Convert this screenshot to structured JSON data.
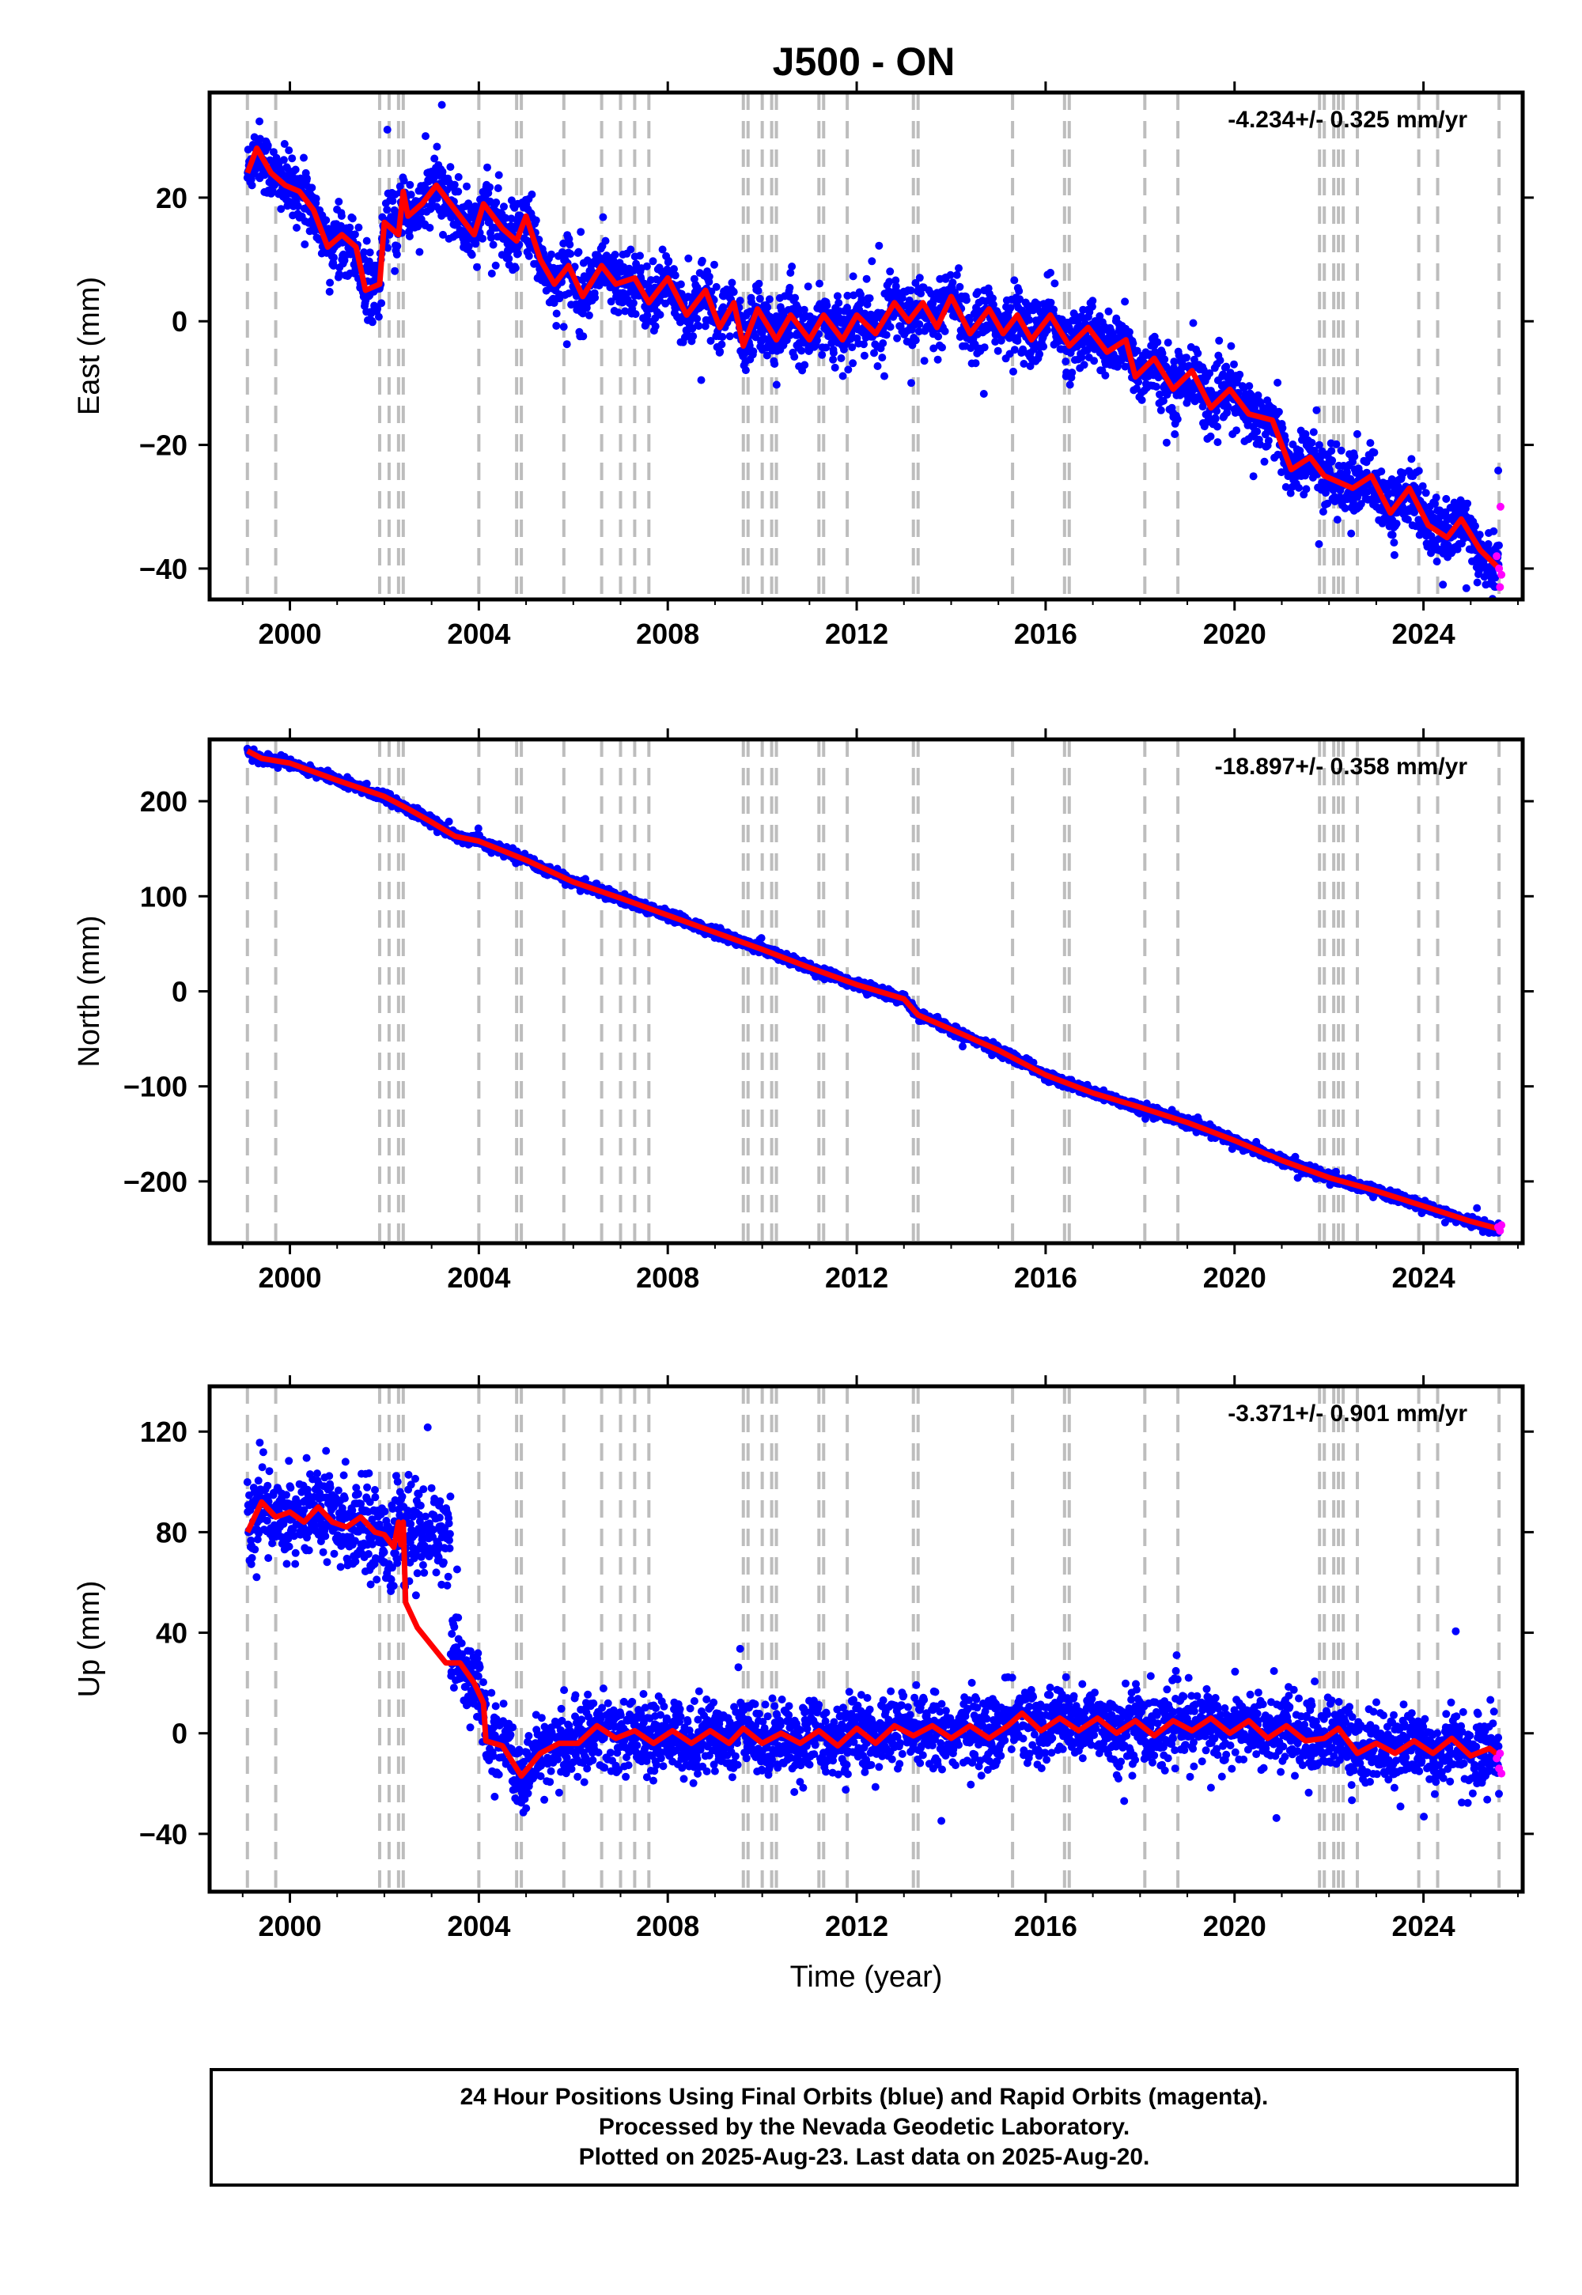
{
  "title": "J500 - ON",
  "footer": {
    "line1": "24 Hour Positions Using Final Orbits (blue) and Rapid Orbits (magenta).",
    "line2": "Processed by the Nevada Geodetic Laboratory.",
    "line3": "Plotted on 2025-Aug-23. Last data on 2025-Aug-20."
  },
  "colors": {
    "final": "#0000ff",
    "rapid": "#ff00ff",
    "model": "#ff0000",
    "events": "#bdbdbd"
  },
  "chart_data": [
    {
      "type": "scatter",
      "ylabel": "East (mm)",
      "xlabel": "",
      "rate": "-4.234+/- 0.325 mm/yr",
      "xlim": [
        1998.3,
        2026.1
      ],
      "ylim": [
        -45,
        37
      ],
      "xticks": [
        2000,
        2004,
        2008,
        2012,
        2016,
        2020,
        2024
      ],
      "yticks": [
        20,
        0,
        -20,
        -40
      ],
      "model": [
        [
          1999.1,
          24
        ],
        [
          1999.3,
          28
        ],
        [
          1999.6,
          24
        ],
        [
          1999.9,
          22
        ],
        [
          2000.2,
          21
        ],
        [
          2000.5,
          18
        ],
        [
          2000.8,
          12
        ],
        [
          2001.1,
          14
        ],
        [
          2001.4,
          12
        ],
        [
          2001.6,
          5
        ],
        [
          2001.9,
          6
        ],
        [
          2002.0,
          16
        ],
        [
          2002.3,
          14
        ],
        [
          2002.4,
          21
        ],
        [
          2002.5,
          17
        ],
        [
          2002.8,
          19
        ],
        [
          2003.1,
          22
        ],
        [
          2003.5,
          18
        ],
        [
          2003.9,
          14
        ],
        [
          2004.1,
          19
        ],
        [
          2004.5,
          15
        ],
        [
          2004.8,
          13
        ],
        [
          2005.0,
          17
        ],
        [
          2005.3,
          10
        ],
        [
          2005.6,
          6
        ],
        [
          2005.9,
          9
        ],
        [
          2006.2,
          4
        ],
        [
          2006.6,
          9
        ],
        [
          2006.9,
          6
        ],
        [
          2007.3,
          7
        ],
        [
          2007.6,
          3
        ],
        [
          2008.0,
          7
        ],
        [
          2008.4,
          1
        ],
        [
          2008.8,
          5
        ],
        [
          2009.1,
          -1
        ],
        [
          2009.4,
          3
        ],
        [
          2009.6,
          -4
        ],
        [
          2009.9,
          2
        ],
        [
          2010.3,
          -3
        ],
        [
          2010.6,
          1
        ],
        [
          2011.0,
          -3
        ],
        [
          2011.3,
          1
        ],
        [
          2011.7,
          -3
        ],
        [
          2012.0,
          1
        ],
        [
          2012.4,
          -2
        ],
        [
          2012.8,
          3
        ],
        [
          2013.1,
          0
        ],
        [
          2013.4,
          3
        ],
        [
          2013.7,
          -1
        ],
        [
          2014.0,
          4
        ],
        [
          2014.4,
          -2
        ],
        [
          2014.8,
          2
        ],
        [
          2015.1,
          -2
        ],
        [
          2015.4,
          1
        ],
        [
          2015.7,
          -3
        ],
        [
          2016.1,
          1
        ],
        [
          2016.5,
          -4
        ],
        [
          2016.9,
          -1
        ],
        [
          2017.3,
          -5
        ],
        [
          2017.7,
          -3
        ],
        [
          2017.9,
          -9
        ],
        [
          2018.3,
          -6
        ],
        [
          2018.7,
          -11
        ],
        [
          2019.1,
          -8
        ],
        [
          2019.5,
          -14
        ],
        [
          2019.9,
          -11
        ],
        [
          2020.3,
          -15
        ],
        [
          2020.8,
          -16
        ],
        [
          2021.2,
          -24
        ],
        [
          2021.6,
          -22
        ],
        [
          2021.9,
          -25
        ],
        [
          2022.2,
          -26
        ],
        [
          2022.5,
          -27
        ],
        [
          2022.9,
          -25
        ],
        [
          2023.3,
          -31
        ],
        [
          2023.7,
          -27
        ],
        [
          2024.1,
          -33
        ],
        [
          2024.5,
          -35
        ],
        [
          2024.8,
          -32
        ],
        [
          2025.2,
          -37
        ],
        [
          2025.6,
          -40
        ]
      ],
      "scatter_sigma": 2.5,
      "rapid": [
        [
          2025.55,
          -38
        ],
        [
          2025.6,
          -40
        ],
        [
          2025.62,
          -43
        ],
        [
          2025.63,
          -30
        ],
        [
          2025.65,
          -41
        ]
      ]
    },
    {
      "type": "scatter",
      "ylabel": "North (mm)",
      "xlabel": "",
      "rate": "-18.897+/- 0.358 mm/yr",
      "xlim": [
        1998.3,
        2026.1
      ],
      "ylim": [
        -265,
        265
      ],
      "xticks": [
        2000,
        2004,
        2008,
        2012,
        2016,
        2020,
        2024
      ],
      "yticks": [
        200,
        100,
        0,
        -100,
        -200
      ],
      "model": [
        [
          1999.1,
          253
        ],
        [
          1999.4,
          245
        ],
        [
          2000.0,
          240
        ],
        [
          2001.0,
          222
        ],
        [
          2002.0,
          205
        ],
        [
          2002.5,
          192
        ],
        [
          2003.0,
          178
        ],
        [
          2003.5,
          163
        ],
        [
          2004.0,
          158
        ],
        [
          2005.0,
          138
        ],
        [
          2006.0,
          115
        ],
        [
          2007.0,
          98
        ],
        [
          2008.0,
          80
        ],
        [
          2009.0,
          62
        ],
        [
          2010.0,
          44
        ],
        [
          2011.0,
          25
        ],
        [
          2012.0,
          7
        ],
        [
          2013.0,
          -8
        ],
        [
          2013.3,
          -25
        ],
        [
          2014.0,
          -40
        ],
        [
          2015.0,
          -62
        ],
        [
          2016.0,
          -88
        ],
        [
          2017.0,
          -107
        ],
        [
          2018.0,
          -122
        ],
        [
          2019.0,
          -138
        ],
        [
          2020.0,
          -157
        ],
        [
          2021.0,
          -178
        ],
        [
          2022.0,
          -196
        ],
        [
          2023.0,
          -210
        ],
        [
          2024.0,
          -226
        ],
        [
          2025.0,
          -242
        ],
        [
          2025.6,
          -250
        ]
      ],
      "scatter_sigma": 2.5,
      "rapid": [
        [
          2025.58,
          -248
        ],
        [
          2025.62,
          -252
        ],
        [
          2025.65,
          -246
        ]
      ]
    },
    {
      "type": "scatter",
      "ylabel": "Up (mm)",
      "xlabel": "Time (year)",
      "rate": "-3.371+/- 0.901 mm/yr",
      "xlim": [
        1998.3,
        2026.1
      ],
      "ylim": [
        -63,
        138
      ],
      "xticks": [
        2000,
        2004,
        2008,
        2012,
        2016,
        2020,
        2024
      ],
      "yticks": [
        120,
        80,
        40,
        0,
        -40
      ],
      "model": [
        [
          1999.1,
          80
        ],
        [
          1999.4,
          92
        ],
        [
          1999.7,
          86
        ],
        [
          2000.0,
          88
        ],
        [
          2000.3,
          84
        ],
        [
          2000.6,
          90
        ],
        [
          2000.9,
          84
        ],
        [
          2001.2,
          82
        ],
        [
          2001.5,
          86
        ],
        [
          2001.8,
          80
        ],
        [
          2002.0,
          79
        ],
        [
          2002.2,
          74
        ],
        [
          2002.3,
          84
        ],
        [
          2002.35,
          75
        ],
        [
          2002.4,
          84
        ],
        [
          2002.45,
          52
        ],
        [
          2002.7,
          42
        ],
        [
          2003.0,
          35
        ],
        [
          2003.3,
          28
        ],
        [
          2003.6,
          28
        ],
        [
          2003.9,
          20
        ],
        [
          2004.1,
          12
        ],
        [
          2004.15,
          -3
        ],
        [
          2004.5,
          -5
        ],
        [
          2004.9,
          -17
        ],
        [
          2005.3,
          -8
        ],
        [
          2005.7,
          -4
        ],
        [
          2006.1,
          -4
        ],
        [
          2006.5,
          3
        ],
        [
          2006.9,
          -2
        ],
        [
          2007.3,
          1
        ],
        [
          2007.7,
          -4
        ],
        [
          2008.1,
          1
        ],
        [
          2008.5,
          -4
        ],
        [
          2008.9,
          1
        ],
        [
          2009.3,
          -4
        ],
        [
          2009.6,
          2
        ],
        [
          2010.0,
          -4
        ],
        [
          2010.4,
          0
        ],
        [
          2010.8,
          -4
        ],
        [
          2011.2,
          1
        ],
        [
          2011.6,
          -5
        ],
        [
          2012.0,
          2
        ],
        [
          2012.4,
          -4
        ],
        [
          2012.8,
          3
        ],
        [
          2013.2,
          -1
        ],
        [
          2013.6,
          3
        ],
        [
          2014.0,
          -2
        ],
        [
          2014.4,
          3
        ],
        [
          2014.8,
          -2
        ],
        [
          2015.2,
          3
        ],
        [
          2015.5,
          8
        ],
        [
          2015.9,
          1
        ],
        [
          2016.3,
          6
        ],
        [
          2016.7,
          1
        ],
        [
          2017.1,
          6
        ],
        [
          2017.5,
          0
        ],
        [
          2017.9,
          5
        ],
        [
          2018.3,
          -1
        ],
        [
          2018.7,
          5
        ],
        [
          2019.1,
          1
        ],
        [
          2019.5,
          6
        ],
        [
          2019.9,
          0
        ],
        [
          2020.3,
          5
        ],
        [
          2020.7,
          -2
        ],
        [
          2021.1,
          3
        ],
        [
          2021.5,
          -3
        ],
        [
          2021.9,
          -2
        ],
        [
          2022.2,
          2
        ],
        [
          2022.6,
          -8
        ],
        [
          2023.0,
          -4
        ],
        [
          2023.4,
          -8
        ],
        [
          2023.8,
          -3
        ],
        [
          2024.2,
          -8
        ],
        [
          2024.6,
          -2
        ],
        [
          2025.0,
          -9
        ],
        [
          2025.4,
          -6
        ],
        [
          2025.6,
          -9
        ]
      ],
      "scatter_sigma": 7,
      "rapid": [
        [
          2025.55,
          -10
        ],
        [
          2025.6,
          -14
        ],
        [
          2025.62,
          -8
        ],
        [
          2025.65,
          -16
        ]
      ]
    }
  ],
  "events": [
    1999.1,
    1999.7,
    2001.9,
    2002.1,
    2002.3,
    2002.4,
    2004.0,
    2004.8,
    2004.9,
    2005.8,
    2006.6,
    2007.0,
    2007.3,
    2007.6,
    2009.6,
    2009.7,
    2010.0,
    2010.2,
    2010.3,
    2011.2,
    2011.3,
    2011.8,
    2013.2,
    2013.3,
    2015.3,
    2016.4,
    2016.5,
    2018.1,
    2018.8,
    2021.8,
    2021.9,
    2022.1,
    2022.2,
    2022.3,
    2022.6,
    2023.9,
    2024.3,
    2025.6
  ]
}
